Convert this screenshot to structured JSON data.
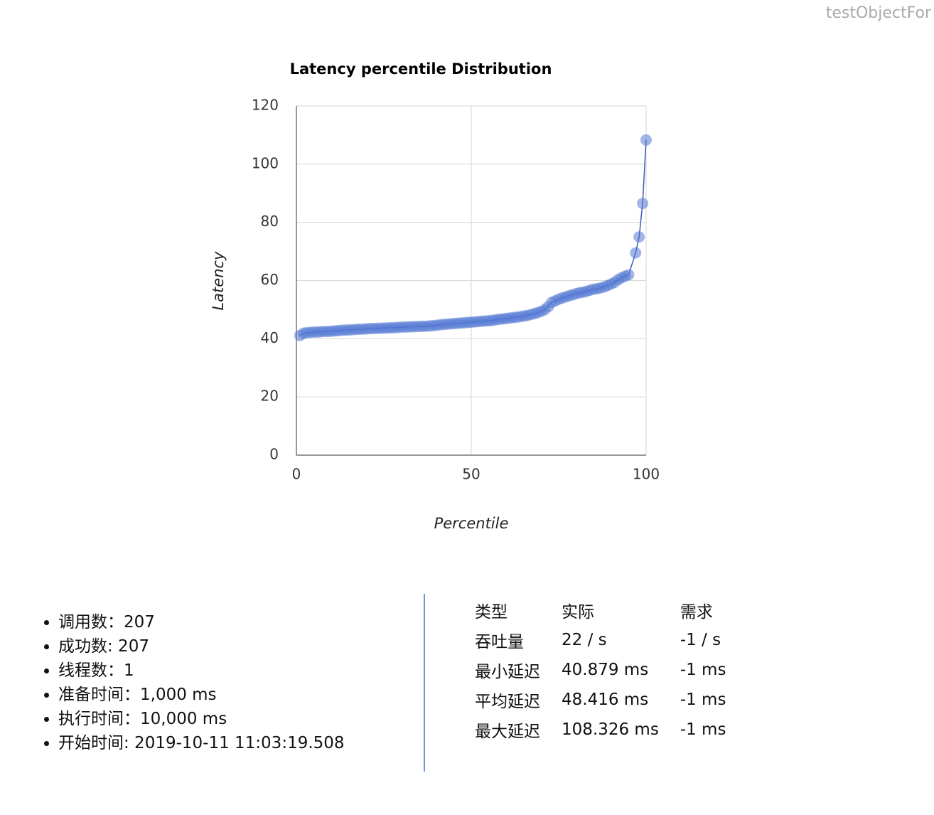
{
  "header": {
    "title": "testObjectFor"
  },
  "chart_data": {
    "type": "line",
    "title": "Latency percentile Distribution",
    "x_label": "Percentile",
    "y_label": "Latency",
    "color": "#5479d3",
    "x": [
      1,
      2,
      3,
      4,
      5,
      6,
      7,
      8,
      9,
      10,
      11,
      12,
      13,
      14,
      15,
      16,
      17,
      18,
      19,
      20,
      21,
      22,
      23,
      24,
      25,
      26,
      27,
      28,
      29,
      30,
      31,
      32,
      33,
      34,
      35,
      36,
      37,
      38,
      39,
      40,
      41,
      42,
      43,
      44,
      45,
      46,
      47,
      48,
      49,
      50,
      51,
      52,
      53,
      54,
      55,
      56,
      57,
      58,
      59,
      60,
      61,
      62,
      63,
      64,
      65,
      66,
      67,
      68,
      69,
      70,
      71,
      72,
      73,
      74,
      75,
      76,
      77,
      78,
      79,
      80,
      81,
      82,
      83,
      84,
      85,
      86,
      87,
      88,
      89,
      90,
      91,
      92,
      93,
      94,
      95,
      97,
      98,
      99,
      100
    ],
    "values": [
      41.1,
      41.9,
      42.1,
      42.2,
      42.3,
      42.3,
      42.4,
      42.5,
      42.5,
      42.6,
      42.7,
      42.8,
      42.9,
      43.0,
      43.0,
      43.1,
      43.2,
      43.3,
      43.3,
      43.4,
      43.5,
      43.5,
      43.6,
      43.6,
      43.7,
      43.7,
      43.8,
      43.8,
      43.9,
      44.0,
      44.0,
      44.1,
      44.1,
      44.2,
      44.2,
      44.3,
      44.3,
      44.4,
      44.5,
      44.6,
      44.8,
      44.9,
      45.0,
      45.1,
      45.2,
      45.3,
      45.4,
      45.5,
      45.6,
      45.7,
      45.8,
      45.9,
      46.0,
      46.1,
      46.2,
      46.3,
      46.5,
      46.7,
      46.8,
      47.0,
      47.1,
      47.3,
      47.4,
      47.6,
      47.8,
      48.0,
      48.3,
      48.6,
      49.0,
      49.4,
      50.0,
      51.0,
      52.5,
      53.0,
      53.6,
      54.0,
      54.4,
      54.8,
      55.1,
      55.5,
      55.8,
      56.0,
      56.3,
      56.7,
      57.0,
      57.2,
      57.5,
      57.8,
      58.3,
      58.8,
      59.4,
      60.3,
      61.0,
      61.5,
      62.0,
      69.5,
      75.0,
      86.5,
      108.3
    ],
    "xlim": [
      0,
      100
    ],
    "xticks": [
      0,
      50,
      100
    ],
    "ylim": [
      0,
      120
    ],
    "yticks": [
      0,
      20,
      40,
      60,
      80,
      100,
      120
    ],
    "grid": true
  },
  "summary": {
    "items": [
      "调用数：207",
      "成功数: 207",
      "线程数：1",
      "准备时间：1,000 ms",
      "执行时间：10,000 ms",
      "开始时间: 2019-10-11 11:03:19.508"
    ]
  },
  "table": {
    "header": [
      "类型",
      "实际",
      "需求"
    ],
    "rows": [
      [
        "吞吐量",
        "22 / s",
        "-1 / s"
      ],
      [
        "最小延迟",
        "40.879 ms",
        "-1 ms"
      ],
      [
        "平均延迟",
        "48.416 ms",
        "-1 ms"
      ],
      [
        "最大延迟",
        "108.326 ms",
        "-1 ms"
      ]
    ]
  }
}
